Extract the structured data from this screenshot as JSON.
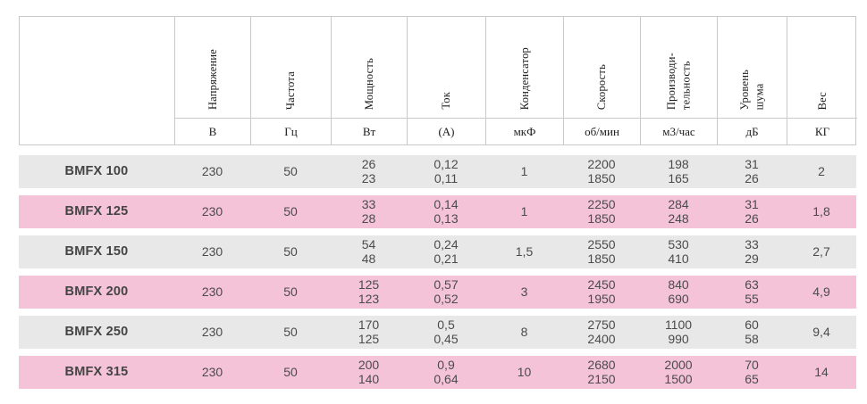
{
  "table": {
    "columns": [
      {
        "label": "",
        "unit": ""
      },
      {
        "label": "Напряжение",
        "unit": "В"
      },
      {
        "label": "Частота",
        "unit": "Гц"
      },
      {
        "label": "Мощность",
        "unit": "Вт"
      },
      {
        "label": "Ток",
        "unit": "(А)"
      },
      {
        "label": "Конденсатор",
        "unit": "мкФ"
      },
      {
        "label": "Скорость",
        "unit": "об/мин"
      },
      {
        "label": "Производи-\nтельность",
        "unit": "м3/час"
      },
      {
        "label": "Уровень\nшума",
        "unit": "дБ"
      },
      {
        "label": "Вес",
        "unit": "КГ"
      }
    ],
    "rows": [
      {
        "model": "BMFX 100",
        "tone": "gray",
        "values": [
          "230",
          "50",
          "26\n23",
          "0,12\n0,11",
          "1",
          "2200\n1850",
          "198\n165",
          "31\n26",
          "2"
        ]
      },
      {
        "model": "BMFX 125",
        "tone": "pink",
        "values": [
          "230",
          "50",
          "33\n28",
          "0,14\n0,13",
          "1",
          "2250\n1850",
          "284\n248",
          "31\n26",
          "1,8"
        ]
      },
      {
        "model": "BMFX 150",
        "tone": "gray",
        "values": [
          "230",
          "50",
          "54\n48",
          "0,24\n0,21",
          "1,5",
          "2550\n1850",
          "530\n410",
          "33\n29",
          "2,7"
        ]
      },
      {
        "model": "BMFX 200",
        "tone": "pink",
        "values": [
          "230",
          "50",
          "125\n123",
          "0,57\n0,52",
          "3",
          "2450\n1950",
          "840\n690",
          "63\n55",
          "4,9"
        ]
      },
      {
        "model": "BMFX 250",
        "tone": "gray",
        "values": [
          "230",
          "50",
          "170\n125",
          "0,5\n0,45",
          "8",
          "2750\n2400",
          "1100\n990",
          "60\n58",
          "9,4"
        ]
      },
      {
        "model": "BMFX 315",
        "tone": "pink",
        "values": [
          "230",
          "50",
          "200\n140",
          "0,9\n0,64",
          "10",
          "2680\n2150",
          "2000\n1500",
          "70\n65",
          "14"
        ]
      }
    ],
    "colors": {
      "row_gray": "#e8e8e8",
      "row_pink": "#f5c3d8",
      "border": "#c9c9c9",
      "header_text": "#1c1c1c",
      "cell_text": "#4b4b4b",
      "model_text": "#444444"
    }
  }
}
